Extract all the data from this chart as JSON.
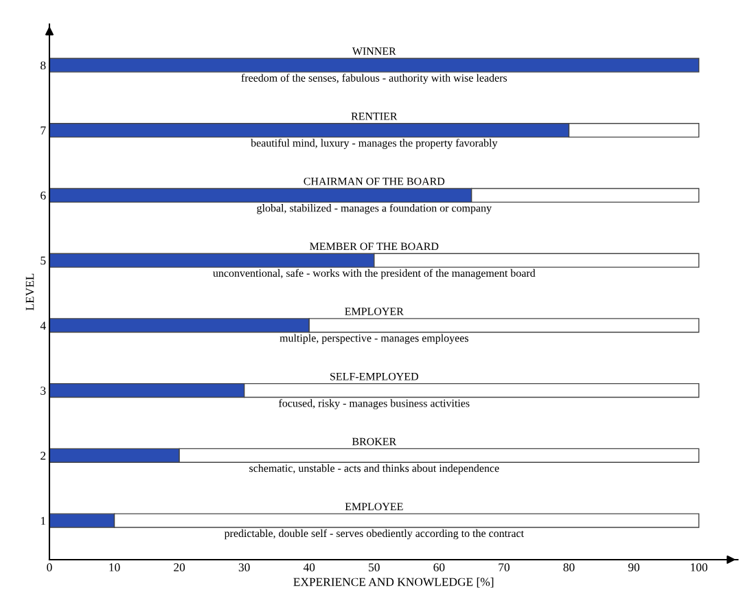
{
  "chart_data": {
    "type": "bar",
    "orientation": "horizontal",
    "stacked": true,
    "xlabel": "EXPERIENCE AND KNOWLEDGE [%]",
    "ylabel": "LEVEL",
    "categories": [
      "8",
      "7",
      "6",
      "5",
      "4",
      "3",
      "2",
      "1"
    ],
    "series": [
      {
        "color": "#2a4db3",
        "values": [
          100,
          80,
          65,
          50,
          40,
          30,
          20,
          10
        ]
      },
      {
        "color": "#ffffff",
        "values": [
          0,
          20,
          35,
          50,
          60,
          70,
          80,
          90
        ]
      }
    ],
    "xlim": [
      0,
      106
    ],
    "xticks": [
      0,
      10,
      20,
      30,
      40,
      50,
      60,
      70,
      80,
      90,
      100
    ],
    "annotations": [
      "WINNER",
      "freedom of the senses, fabulous - authority with wise leaders",
      "RENTIER",
      "beautiful mind, luxury - manages the property favorably",
      "CHAIRMAN OF THE BOARD",
      "global, stabilized - manages a foundation or company",
      "MEMBER OF THE BOARD",
      "unconventional, safe - works with the president of the management board",
      "EMPLOYER",
      "multiple, perspective - manages employees",
      "SELF-EMPLOYED",
      "focused, risky - manages business activities",
      "BROKER",
      "schematic, unstable - acts and thinks about independence",
      "EMPLOYEE",
      "predictable, double self - serves obediently according to the contract"
    ]
  }
}
